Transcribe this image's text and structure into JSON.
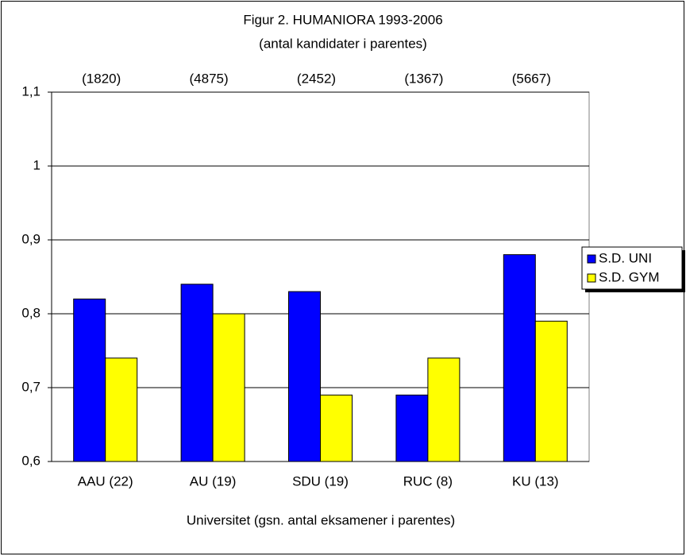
{
  "chart_data": {
    "type": "bar",
    "title": "Figur 2. HUMANIORA 1993-2006",
    "subtitle": "(antal kandidater i parentes)",
    "x_label": "Universitet (gsn. antal eksamener i parentes)",
    "categories": [
      "AAU (22)",
      "AU (19)",
      "SDU (19)",
      "RUC (8)",
      "KU (13)"
    ],
    "annotations": [
      "(1820)",
      "(4875)",
      "(2452)",
      "(1367)",
      "(5667)"
    ],
    "series": [
      {
        "name": "S.D. UNI",
        "color": "#0000ff",
        "values": [
          0.82,
          0.84,
          0.83,
          0.69,
          0.88
        ]
      },
      {
        "name": "S.D. GYM",
        "color": "#ffff00",
        "values": [
          0.74,
          0.8,
          0.69,
          0.74,
          0.79
        ]
      }
    ],
    "ylim": [
      0.6,
      1.1
    ],
    "yticks": [
      {
        "value": 0.6,
        "label": "0,6"
      },
      {
        "value": 0.7,
        "label": "0,7"
      },
      {
        "value": 0.8,
        "label": "0,8"
      },
      {
        "value": 0.9,
        "label": "0,9"
      },
      1,
      {
        "value": 1.1,
        "label": "1,1"
      }
    ],
    "grid": true,
    "legend": "right"
  }
}
